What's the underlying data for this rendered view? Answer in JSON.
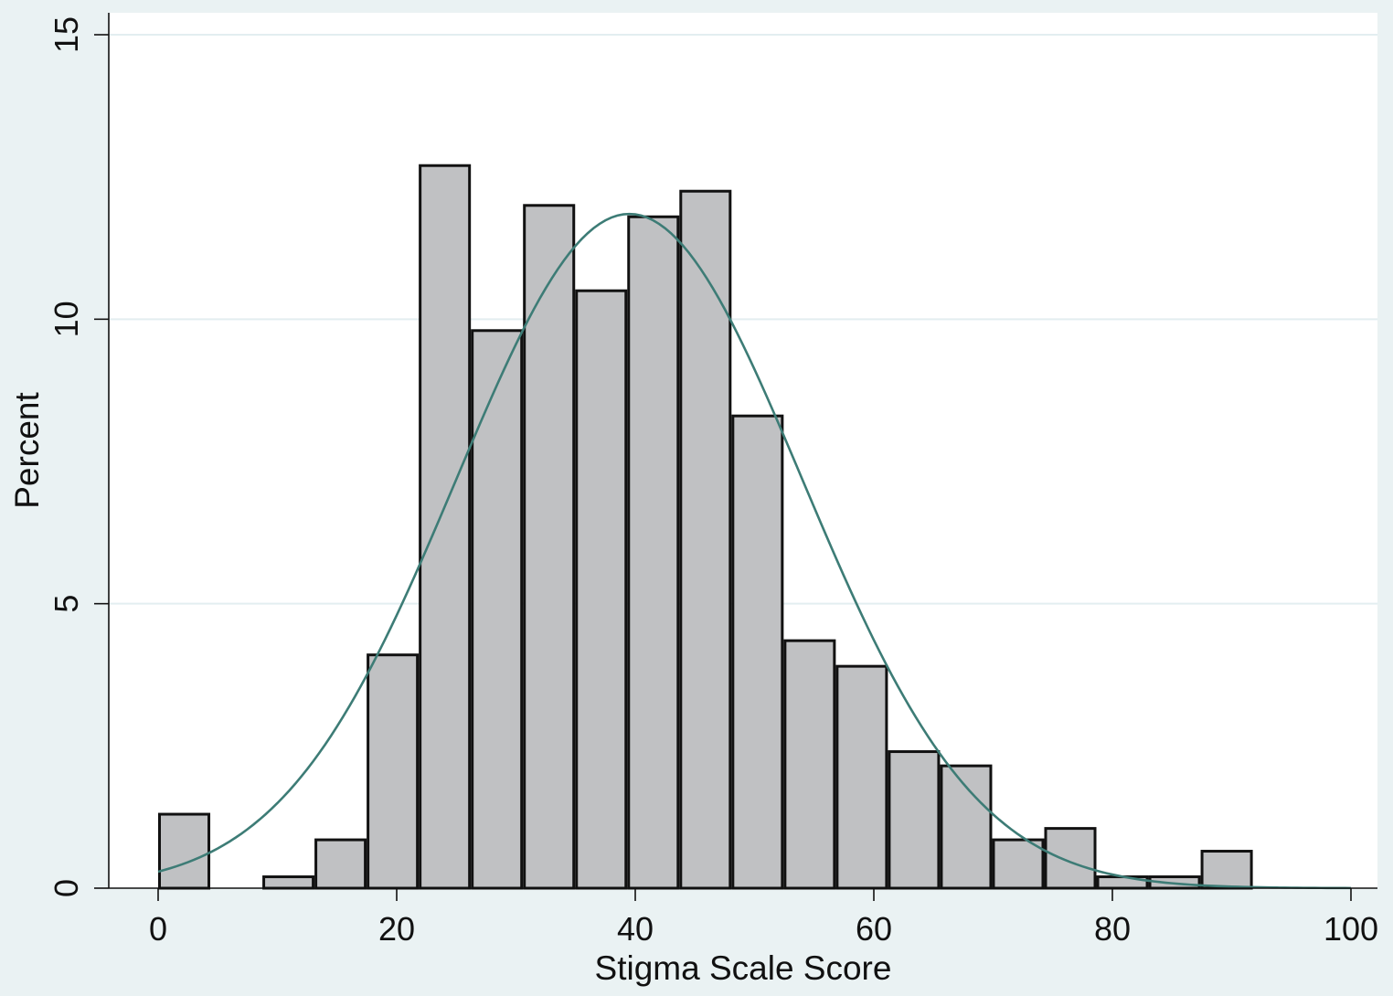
{
  "chart_data": {
    "type": "bar",
    "subtype": "histogram",
    "xlabel": "Stigma Scale Score",
    "ylabel": "Percent",
    "xlim": [
      -4.5,
      102
    ],
    "ylim": [
      0,
      15.4
    ],
    "xticks": [
      0,
      20,
      40,
      60,
      80,
      100
    ],
    "yticks": [
      0,
      5,
      10,
      15
    ],
    "grid": true,
    "bin_width": 4.37,
    "bins": [
      {
        "x0": 0.0,
        "x1": 4.37,
        "value": 1.3
      },
      {
        "x0": 4.37,
        "x1": 8.74,
        "value": 0.0
      },
      {
        "x0": 8.74,
        "x1": 13.11,
        "value": 0.2
      },
      {
        "x0": 13.11,
        "x1": 17.48,
        "value": 0.85
      },
      {
        "x0": 17.48,
        "x1": 21.85,
        "value": 4.1
      },
      {
        "x0": 21.85,
        "x1": 26.22,
        "value": 12.7
      },
      {
        "x0": 26.22,
        "x1": 30.59,
        "value": 9.8
      },
      {
        "x0": 30.59,
        "x1": 34.96,
        "value": 12.0
      },
      {
        "x0": 34.96,
        "x1": 39.33,
        "value": 10.5
      },
      {
        "x0": 39.33,
        "x1": 43.7,
        "value": 11.8
      },
      {
        "x0": 43.7,
        "x1": 48.07,
        "value": 12.25
      },
      {
        "x0": 48.07,
        "x1": 52.44,
        "value": 8.3
      },
      {
        "x0": 52.44,
        "x1": 56.81,
        "value": 4.35
      },
      {
        "x0": 56.81,
        "x1": 61.18,
        "value": 3.9
      },
      {
        "x0": 61.18,
        "x1": 65.55,
        "value": 2.4
      },
      {
        "x0": 65.55,
        "x1": 69.92,
        "value": 2.15
      },
      {
        "x0": 69.92,
        "x1": 74.29,
        "value": 0.85
      },
      {
        "x0": 74.29,
        "x1": 78.66,
        "value": 1.05
      },
      {
        "x0": 78.66,
        "x1": 83.03,
        "value": 0.2
      },
      {
        "x0": 83.03,
        "x1": 87.4,
        "value": 0.2
      },
      {
        "x0": 87.4,
        "x1": 91.77,
        "value": 0.65
      }
    ],
    "normal_curve": {
      "mean": 39.5,
      "sd": 14.5,
      "peak": 11.85
    },
    "colors": {
      "background": "#eaf2f3",
      "plot_area": "#ffffff",
      "bar_fill": "#c0c1c3",
      "bar_stroke": "#111111",
      "curve": "#3d7c76",
      "grid": "#e3eef0"
    }
  }
}
